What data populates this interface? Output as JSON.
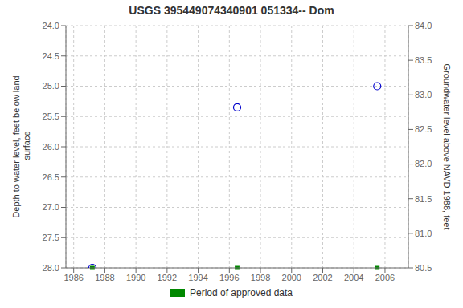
{
  "chart_data": {
    "type": "scatter",
    "title": "USGS 395449074340901 051334-- Dom",
    "y_label": "Depth to water level, feet below land\n surface",
    "y2_label": "Groundwater level above NAVD 1988, feet",
    "x": [
      1987.2,
      1996.5,
      2005.5
    ],
    "series": [
      {
        "values": [
          28.0,
          25.35,
          25.0
        ],
        "color": "#0000cc",
        "marker": "open_circle"
      }
    ],
    "approved_periods": {
      "name": "Period of approved data",
      "color": "#008800",
      "x": [
        1987.2,
        1996.5,
        2005.5
      ]
    },
    "xlim": [
      1985.5,
      2007.5
    ],
    "xticks": [
      1986,
      1988,
      1990,
      1992,
      1994,
      1996,
      1998,
      2000,
      2002,
      2004,
      2006
    ],
    "ylim": [
      28.0,
      24.0
    ],
    "yticks": [
      {
        "value": 24.0,
        "label": "24.0"
      },
      {
        "value": 24.5,
        "label": "24.5"
      },
      {
        "value": 25.0,
        "label": "25.0"
      },
      {
        "value": 25.5,
        "label": "25.5"
      },
      {
        "value": 26.0,
        "label": "26.0"
      },
      {
        "value": 26.5,
        "label": "26.5"
      },
      {
        "value": 27.0,
        "label": "27.0"
      },
      {
        "value": 27.5,
        "label": "27.5"
      },
      {
        "value": 28.0,
        "label": "28.0"
      }
    ],
    "y2lim": [
      80.5,
      84.0
    ],
    "y2ticks": [
      {
        "value": 84.0,
        "label": "84.0"
      },
      {
        "value": 83.5,
        "label": "83.5"
      },
      {
        "value": 83.0,
        "label": "83.0"
      },
      {
        "value": 82.5,
        "label": "82.5"
      },
      {
        "value": 82.0,
        "label": "82.0"
      },
      {
        "value": 81.5,
        "label": "81.5"
      },
      {
        "value": 81.0,
        "label": "81.0"
      },
      {
        "value": 80.5,
        "label": "80.5"
      }
    ],
    "grid": true,
    "legend": "bottom"
  }
}
